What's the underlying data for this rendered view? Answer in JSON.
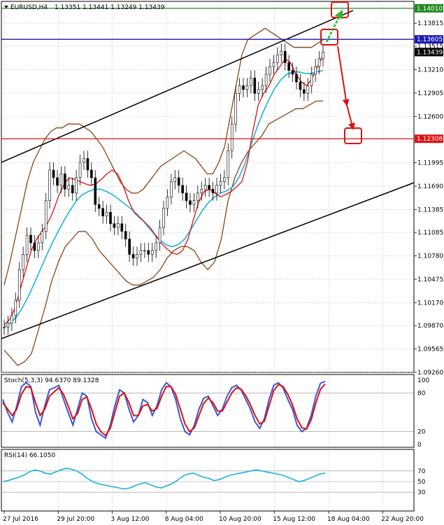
{
  "header": {
    "symbol": "EURUSD,H4",
    "ohlc": "1.13351 1.13441 1.13249 1.13439"
  },
  "chart_data": {
    "type": "candlestick",
    "price_axis": {
      "ylim": [
        1.0926,
        1.141
      ],
      "ticks": [
        "1.13815",
        "1.13515",
        "1.13210",
        "1.12905",
        "1.12600",
        "1.11995",
        "1.11690",
        "1.11385",
        "1.11085",
        "1.10780",
        "1.10475",
        "1.10170",
        "1.09870",
        "1.09565",
        "1.09260"
      ],
      "tick_values": [
        1.13815,
        1.13515,
        1.1321,
        1.12905,
        1.126,
        1.11995,
        1.1169,
        1.11385,
        1.11085,
        1.1078,
        1.10475,
        1.1017,
        1.0987,
        1.09565,
        1.0926
      ]
    },
    "time_axis": {
      "labels": [
        "27 Jul 2016",
        "29 Jul 20:00",
        "3 Aug 12:00",
        "8 Aug 04:00",
        "10 Aug 20:00",
        "15 Aug 12:00",
        "18 Aug 04:00",
        "22 Aug 20:00"
      ],
      "label_positions": [
        0.0,
        0.163,
        0.326,
        0.489,
        0.652,
        0.815,
        0.979,
        1.142
      ]
    },
    "price_series": {
      "name": "EURUSD",
      "close": [
        1.0985,
        1.099,
        1.1,
        1.102,
        1.106,
        1.108,
        1.1105,
        1.1095,
        1.1085,
        1.1095,
        1.111,
        1.115,
        1.119,
        1.118,
        1.117,
        1.1185,
        1.1165,
        1.117,
        1.116,
        1.118,
        1.12,
        1.1205,
        1.119,
        1.118,
        1.1145,
        1.114,
        1.113,
        1.1135,
        1.112,
        1.1115,
        1.112,
        1.111,
        1.11,
        1.108,
        1.1075,
        1.108,
        1.1085,
        1.1085,
        1.108,
        1.1085,
        1.1095,
        1.1115,
        1.114,
        1.1155,
        1.1175,
        1.118,
        1.117,
        1.116,
        1.115,
        1.1145,
        1.115,
        1.116,
        1.1165,
        1.117,
        1.1165,
        1.116,
        1.117,
        1.1175,
        1.118,
        1.1215,
        1.125,
        1.129,
        1.13,
        1.1295,
        1.13,
        1.131,
        1.129,
        1.1295,
        1.13,
        1.1315,
        1.1325,
        1.133,
        1.134,
        1.1345,
        1.133,
        1.132,
        1.1315,
        1.1305,
        1.1295,
        1.129,
        1.13,
        1.1315,
        1.1325,
        1.1335,
        1.1344
      ],
      "bb_upper": [
        1.104,
        1.107,
        1.1105,
        1.114,
        1.1175,
        1.12,
        1.1215,
        1.123,
        1.124,
        1.1245,
        1.1245,
        1.125,
        1.125,
        1.125,
        1.1245,
        1.124,
        1.123,
        1.122,
        1.1205,
        1.119,
        1.1175,
        1.1165,
        1.116,
        1.116,
        1.1165,
        1.1175,
        1.1185,
        1.1195,
        1.12,
        1.1205,
        1.121,
        1.1215,
        1.121,
        1.1205,
        1.1195,
        1.1185,
        1.1185,
        1.12,
        1.122,
        1.126,
        1.13,
        1.134,
        1.136,
        1.1365,
        1.137,
        1.1375,
        1.137,
        1.1365,
        1.136,
        1.1355,
        1.135,
        1.135,
        1.135,
        1.135,
        1.1355,
        1.136
      ],
      "bb_lower": [
        1.0955,
        1.0945,
        1.0935,
        1.094,
        1.095,
        1.098,
        1.101,
        1.1045,
        1.107,
        1.109,
        1.11,
        1.111,
        1.111,
        1.11,
        1.1085,
        1.1075,
        1.1065,
        1.1055,
        1.1045,
        1.104,
        1.104,
        1.1045,
        1.105,
        1.106,
        1.1075,
        1.1085,
        1.109,
        1.109,
        1.1085,
        1.107,
        1.106,
        1.107,
        1.11,
        1.115,
        1.118,
        1.12,
        1.1215,
        1.1225,
        1.1235,
        1.125,
        1.1255,
        1.126,
        1.1265,
        1.127,
        1.127,
        1.1275,
        1.128,
        1.128
      ],
      "ma_fast": [
        1.0988,
        1.0995,
        1.101,
        1.1035,
        1.106,
        1.1085,
        1.11,
        1.111,
        1.112,
        1.1135,
        1.1155,
        1.117,
        1.118,
        1.1178,
        1.1175,
        1.1172,
        1.117,
        1.1172,
        1.1178,
        1.1185,
        1.119,
        1.1185,
        1.117,
        1.115,
        1.1135,
        1.1128,
        1.1122,
        1.1115,
        1.1105,
        1.1095,
        1.1088,
        1.1082,
        1.108,
        1.1085,
        1.11,
        1.1125,
        1.1148,
        1.1162,
        1.1165,
        1.116,
        1.1155,
        1.1158,
        1.1162,
        1.1168,
        1.1175,
        1.12,
        1.124,
        1.1275,
        1.129,
        1.13,
        1.1315,
        1.1325,
        1.1335,
        1.133,
        1.1315,
        1.1305,
        1.13,
        1.131,
        1.1325,
        1.134
      ],
      "ma_slow": [
        1.0985,
        1.099,
        1.0998,
        1.101,
        1.1025,
        1.1042,
        1.106,
        1.1078,
        1.1095,
        1.111,
        1.1125,
        1.1138,
        1.115,
        1.1158,
        1.1162,
        1.1165,
        1.1165,
        1.1162,
        1.1158,
        1.1152,
        1.1146,
        1.114,
        1.1133,
        1.1125,
        1.1115,
        1.1106,
        1.1098,
        1.1092,
        1.109,
        1.1093,
        1.11,
        1.1112,
        1.1125,
        1.1138,
        1.1148,
        1.1155,
        1.116,
        1.1163,
        1.1168,
        1.118,
        1.1198,
        1.1222,
        1.1245,
        1.1265,
        1.1282,
        1.1297,
        1.1308,
        1.1315,
        1.1318,
        1.1318,
        1.1316,
        1.1316,
        1.1318,
        1.132
      ]
    },
    "levels": [
      {
        "value": 1.1401,
        "label": "1.14010",
        "color": "#1f8a1f"
      },
      {
        "value": 1.13605,
        "label": "1.13605",
        "color": "#1a1ab0"
      },
      {
        "value": 1.12308,
        "label": "1.12308",
        "color": "#dd1111"
      }
    ],
    "current_price": {
      "value": 1.13439,
      "label": "1.13439"
    },
    "channel": {
      "upper": [
        {
          "t": 0.0,
          "p": 1.12
        },
        {
          "t": 1.0,
          "p": 1.14
        }
      ],
      "lower": [
        {
          "t": 0.0,
          "p": 1.097
        },
        {
          "t": 1.0,
          "p": 1.121
        }
      ]
    },
    "stochastic": {
      "label": "Stoch(5,3,3) 94.6370 89.1328",
      "levels": [
        "100",
        "80",
        "20",
        "0"
      ],
      "level_values": [
        100,
        80,
        20,
        0
      ],
      "main": [
        70,
        50,
        35,
        60,
        90,
        96,
        90,
        50,
        30,
        60,
        85,
        88,
        92,
        70,
        50,
        30,
        55,
        80,
        75,
        40,
        20,
        15,
        10,
        30,
        60,
        85,
        80,
        55,
        35,
        45,
        70,
        65,
        45,
        60,
        85,
        96,
        90,
        70,
        40,
        20,
        15,
        30,
        55,
        72,
        75,
        60,
        45,
        55,
        75,
        88,
        92,
        85,
        70,
        55,
        35,
        25,
        40,
        70,
        92,
        96,
        88,
        70,
        55,
        30,
        20,
        25,
        45,
        75,
        95,
        98
      ],
      "signal": [
        65,
        55,
        45,
        55,
        78,
        90,
        88,
        65,
        45,
        55,
        75,
        82,
        88,
        78,
        60,
        40,
        48,
        70,
        74,
        55,
        32,
        20,
        14,
        25,
        50,
        75,
        80,
        65,
        45,
        45,
        60,
        62,
        52,
        56,
        75,
        90,
        90,
        78,
        55,
        32,
        20,
        26,
        45,
        64,
        72,
        65,
        52,
        52,
        66,
        80,
        88,
        86,
        76,
        62,
        45,
        32,
        36,
        60,
        84,
        93,
        90,
        78,
        62,
        40,
        26,
        24,
        38,
        64,
        86,
        94
      ]
    },
    "rsi": {
      "label": "RSI(14) 66.1050",
      "levels": [
        "70",
        "50",
        "30"
      ],
      "level_values": [
        70,
        50,
        30
      ],
      "values": [
        50,
        52,
        55,
        58,
        62,
        68,
        72,
        70,
        66,
        64,
        68,
        72,
        75,
        73,
        70,
        64,
        56,
        50,
        46,
        44,
        42,
        40,
        38,
        36,
        38,
        42,
        46,
        48,
        44,
        40,
        38,
        42,
        46,
        52,
        60,
        64,
        66,
        62,
        58,
        56,
        52,
        54,
        58,
        62,
        64,
        66,
        68,
        70,
        72,
        70,
        68,
        66,
        64,
        62,
        58,
        54,
        50,
        52,
        56,
        60,
        64,
        66
      ]
    },
    "annotations": [
      {
        "type": "arrow",
        "color": "#2eb82e",
        "from": {
          "t": 0.955,
          "p": 1.13515
        },
        "to": {
          "t": 0.995,
          "p": 1.14
        }
      },
      {
        "type": "arrow",
        "color": "#dd1111",
        "from": {
          "t": 0.975,
          "p": 1.13605
        },
        "to": {
          "t": 1.01,
          "p": 1.12308
        }
      },
      {
        "type": "box",
        "color": "#dd1111",
        "center": {
          "t": 0.995,
          "p": 1.1401
        }
      },
      {
        "type": "box",
        "color": "#dd1111",
        "center": {
          "t": 0.972,
          "p": 1.13605
        }
      },
      {
        "type": "box",
        "color": "#dd1111",
        "center": {
          "t": 1.03,
          "p": 1.12308
        }
      }
    ]
  }
}
